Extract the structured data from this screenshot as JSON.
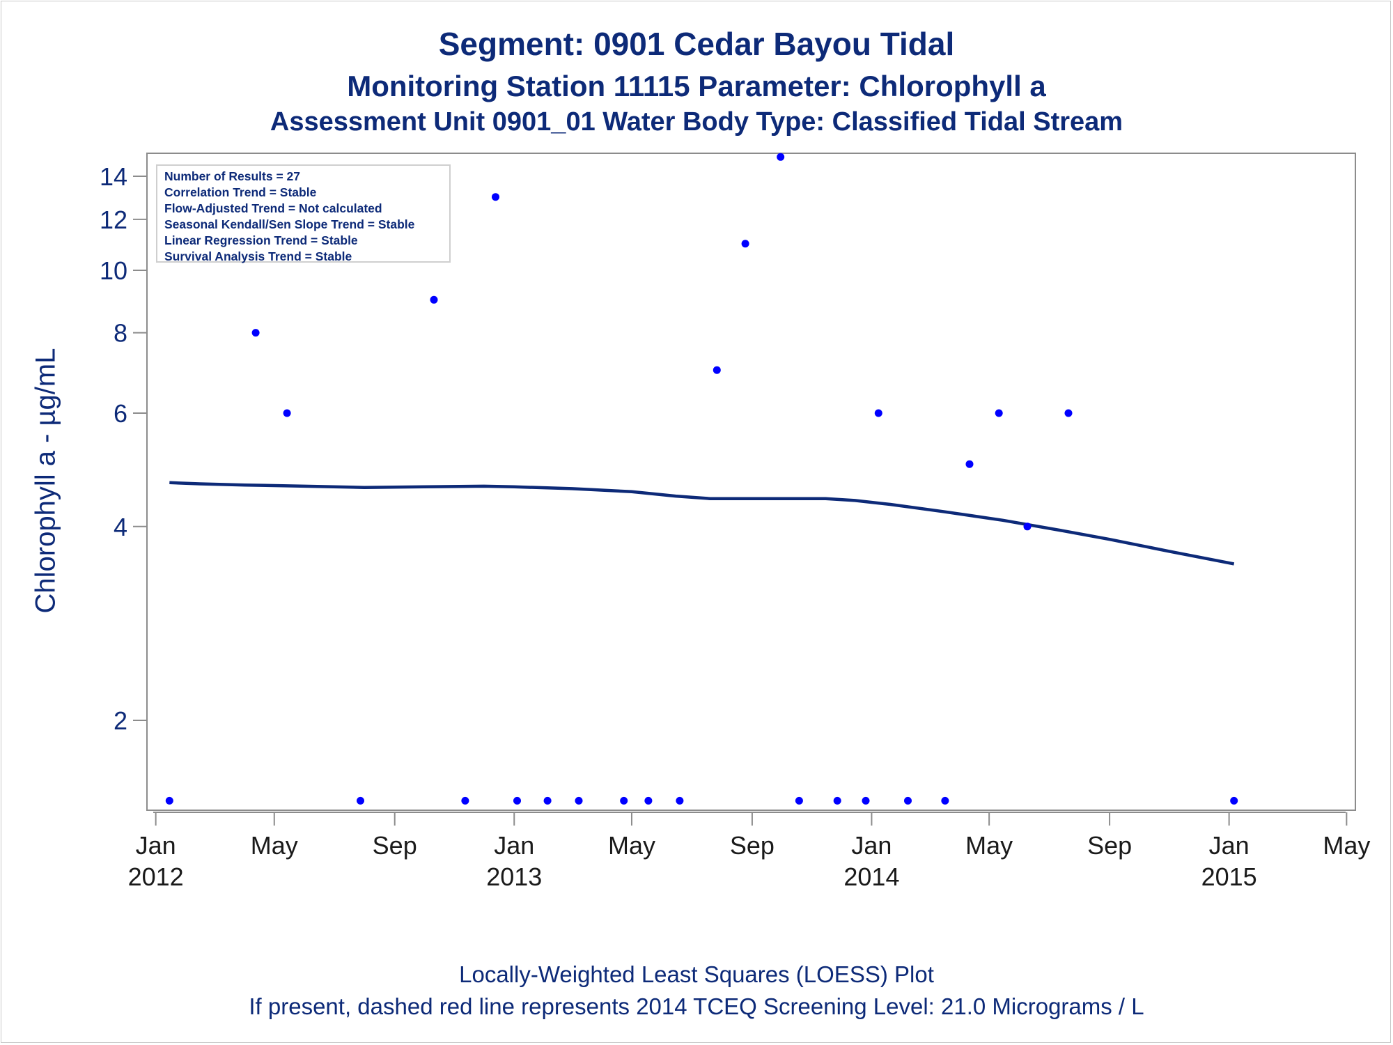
{
  "titles": {
    "line1": "Segment: 0901  Cedar Bayou Tidal",
    "line2": "Monitoring Station 11115 Parameter: Chlorophyll a",
    "line3": "Assessment Unit 0901_01   Water Body Type: Classified Tidal Stream"
  },
  "footnotes": {
    "line1": "Locally-Weighted Least Squares (LOESS) Plot",
    "line2": "If present, dashed red line represents 2014 TCEQ Screening Level: 21.0 Micrograms / L"
  },
  "stats": [
    "Number of Results = 27",
    "Correlation Trend = Stable",
    "Flow-Adjusted Trend = Not calculated",
    "Seasonal Kendall/Sen Slope Trend = Stable",
    "Linear Regression Trend = Stable",
    "Survival Analysis Trend = Stable"
  ],
  "colors": {
    "text": "#0d2a78",
    "points": "#0000ff",
    "loess": "#0d2a78",
    "axis": "#8c8c8c"
  },
  "chart_data": {
    "type": "scatter",
    "ylabel": "Chlorophyll a -  µg/mL",
    "xlabel": "",
    "y_scale": "log",
    "ylim": [
      1.45,
      15.2
    ],
    "xlim": [
      "2011-12-23",
      "2015-05-10"
    ],
    "y_ticks": [
      2,
      4,
      6,
      8,
      10,
      12,
      14
    ],
    "x_ticks": [
      {
        "date": "2012-01-01",
        "label": [
          "Jan",
          "2012"
        ]
      },
      {
        "date": "2012-05-01",
        "label": [
          "May",
          ""
        ]
      },
      {
        "date": "2012-09-01",
        "label": [
          "Sep",
          ""
        ]
      },
      {
        "date": "2013-01-01",
        "label": [
          "Jan",
          "2013"
        ]
      },
      {
        "date": "2013-05-01",
        "label": [
          "May",
          ""
        ]
      },
      {
        "date": "2013-09-01",
        "label": [
          "Sep",
          ""
        ]
      },
      {
        "date": "2014-01-01",
        "label": [
          "Jan",
          "2014"
        ]
      },
      {
        "date": "2014-05-01",
        "label": [
          "May",
          ""
        ]
      },
      {
        "date": "2014-09-01",
        "label": [
          "Sep",
          ""
        ]
      },
      {
        "date": "2015-01-01",
        "label": [
          "Jan",
          "2015"
        ]
      },
      {
        "date": "2015-05-01",
        "label": [
          "May",
          ""
        ]
      }
    ],
    "grid": false,
    "series": [
      {
        "kind": "points",
        "points": [
          [
            "2012-01-15",
            1.5
          ],
          [
            "2012-04-12",
            8
          ],
          [
            "2012-05-14",
            6
          ],
          [
            "2012-07-28",
            1.5
          ],
          [
            "2012-10-11",
            9
          ],
          [
            "2012-11-12",
            1.5
          ],
          [
            "2012-12-13",
            13
          ],
          [
            "2013-01-04",
            1.5
          ],
          [
            "2013-02-04",
            1.5
          ],
          [
            "2013-03-08",
            1.5
          ],
          [
            "2013-04-23",
            1.5
          ],
          [
            "2013-05-18",
            1.5
          ],
          [
            "2013-06-19",
            1.5
          ],
          [
            "2013-07-27",
            7
          ],
          [
            "2013-08-25",
            11
          ],
          [
            "2013-09-30",
            15
          ],
          [
            "2013-10-19",
            1.5
          ],
          [
            "2013-11-27",
            1.5
          ],
          [
            "2013-12-26",
            1.5
          ],
          [
            "2014-01-08",
            6
          ],
          [
            "2014-02-07",
            1.5
          ],
          [
            "2014-03-17",
            1.5
          ],
          [
            "2014-04-11",
            5
          ],
          [
            "2014-05-11",
            6
          ],
          [
            "2014-06-09",
            4
          ],
          [
            "2014-07-21",
            6
          ],
          [
            "2015-01-06",
            1.5
          ]
        ]
      },
      {
        "kind": "loess",
        "points": [
          [
            "2012-01-15",
            4.68
          ],
          [
            "2012-02-15",
            4.66
          ],
          [
            "2012-04-01",
            4.64
          ],
          [
            "2012-06-01",
            4.62
          ],
          [
            "2012-08-01",
            4.6
          ],
          [
            "2012-10-01",
            4.61
          ],
          [
            "2012-12-01",
            4.62
          ],
          [
            "2013-01-01",
            4.61
          ],
          [
            "2013-03-01",
            4.58
          ],
          [
            "2013-05-01",
            4.53
          ],
          [
            "2013-06-15",
            4.46
          ],
          [
            "2013-07-20",
            4.42
          ],
          [
            "2013-09-01",
            4.42
          ],
          [
            "2013-11-15",
            4.42
          ],
          [
            "2013-12-15",
            4.39
          ],
          [
            "2014-01-20",
            4.33
          ],
          [
            "2014-03-15",
            4.22
          ],
          [
            "2014-05-15",
            4.09
          ],
          [
            "2014-07-15",
            3.94
          ],
          [
            "2014-09-01",
            3.82
          ],
          [
            "2014-11-01",
            3.66
          ],
          [
            "2015-01-06",
            3.5
          ]
        ]
      }
    ]
  }
}
